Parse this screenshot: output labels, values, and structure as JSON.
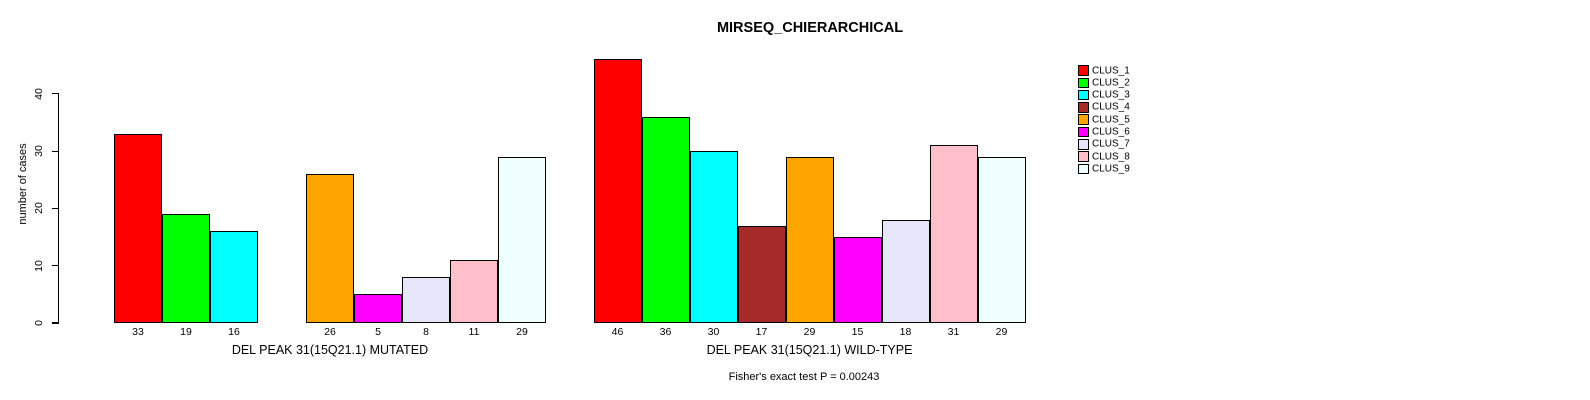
{
  "chart_data": {
    "type": "bar",
    "title": "MIRSEQ_CHIERARCHICAL",
    "ylabel": "number of cases",
    "annotation": "Fisher's exact test P = 0.00243",
    "ylim": [
      0,
      46.5
    ],
    "yticks": [
      0,
      10,
      20,
      30,
      40
    ],
    "grid": false,
    "legend_position": "right",
    "legend_entries": [
      {
        "label": "CLUS_1",
        "color": "#FF0000"
      },
      {
        "label": "CLUS_2",
        "color": "#00FF00"
      },
      {
        "label": "CLUS_3",
        "color": "#00FFFF"
      },
      {
        "label": "CLUS_4",
        "color": "#A52A2A"
      },
      {
        "label": "CLUS_5",
        "color": "#FFA500"
      },
      {
        "label": "CLUS_6",
        "color": "#FF00FF"
      },
      {
        "label": "CLUS_7",
        "color": "#E6E6FA"
      },
      {
        "label": "CLUS_8",
        "color": "#FFC0CB"
      },
      {
        "label": "CLUS_9",
        "color": "#F0FFFF"
      }
    ],
    "categories": [
      "CLUS_1",
      "CLUS_2",
      "CLUS_3",
      "CLUS_4",
      "CLUS_5",
      "CLUS_6",
      "CLUS_7",
      "CLUS_8",
      "CLUS_9"
    ],
    "groups": [
      {
        "label": "DEL PEAK 31(15Q21.1) MUTATED",
        "values": [
          33,
          19,
          16,
          0,
          26,
          5,
          8,
          11,
          29
        ],
        "bar_labels": [
          "33",
          "19",
          "16",
          "",
          "26",
          "5",
          "8",
          "11",
          "29"
        ]
      },
      {
        "label": "DEL PEAK 31(15Q21.1) WILD-TYPE",
        "values": [
          46,
          36,
          30,
          17,
          29,
          15,
          18,
          31,
          29
        ],
        "bar_labels": [
          "46",
          "36",
          "30",
          "17",
          "29",
          "15",
          "18",
          "31",
          "29"
        ]
      }
    ]
  }
}
